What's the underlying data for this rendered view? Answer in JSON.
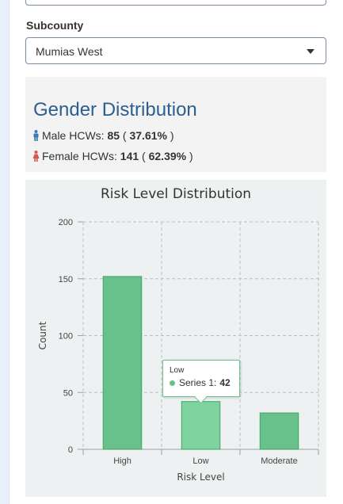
{
  "filter": {
    "label": "Subcounty",
    "value": "Mumias West"
  },
  "gender": {
    "title": "Gender Distribution",
    "male": {
      "label": "Male HCWs:",
      "count": "85",
      "pct": "37.61%",
      "color": "#3a78b8"
    },
    "female": {
      "label": "Female HCWs:",
      "count": "141",
      "pct": "62.39%",
      "color": "#d9534f"
    }
  },
  "chart_data": {
    "type": "bar",
    "title": "Risk Level Distribution",
    "categories": [
      "High",
      "Low",
      "Moderate"
    ],
    "series": [
      {
        "name": "Series 1",
        "values": [
          152,
          42,
          32
        ]
      }
    ],
    "xlabel": "Risk Level",
    "ylabel": "Count",
    "ylim": [
      0,
      200
    ],
    "yticks": [
      0,
      50,
      100,
      150,
      200
    ],
    "grid": true,
    "colors": {
      "bar": "#68c08a",
      "bar_highlight": "#7ed39e",
      "bar_stroke": "#43a567"
    },
    "tooltip": {
      "category": "Low",
      "series": "Series 1:",
      "value": "42"
    }
  }
}
